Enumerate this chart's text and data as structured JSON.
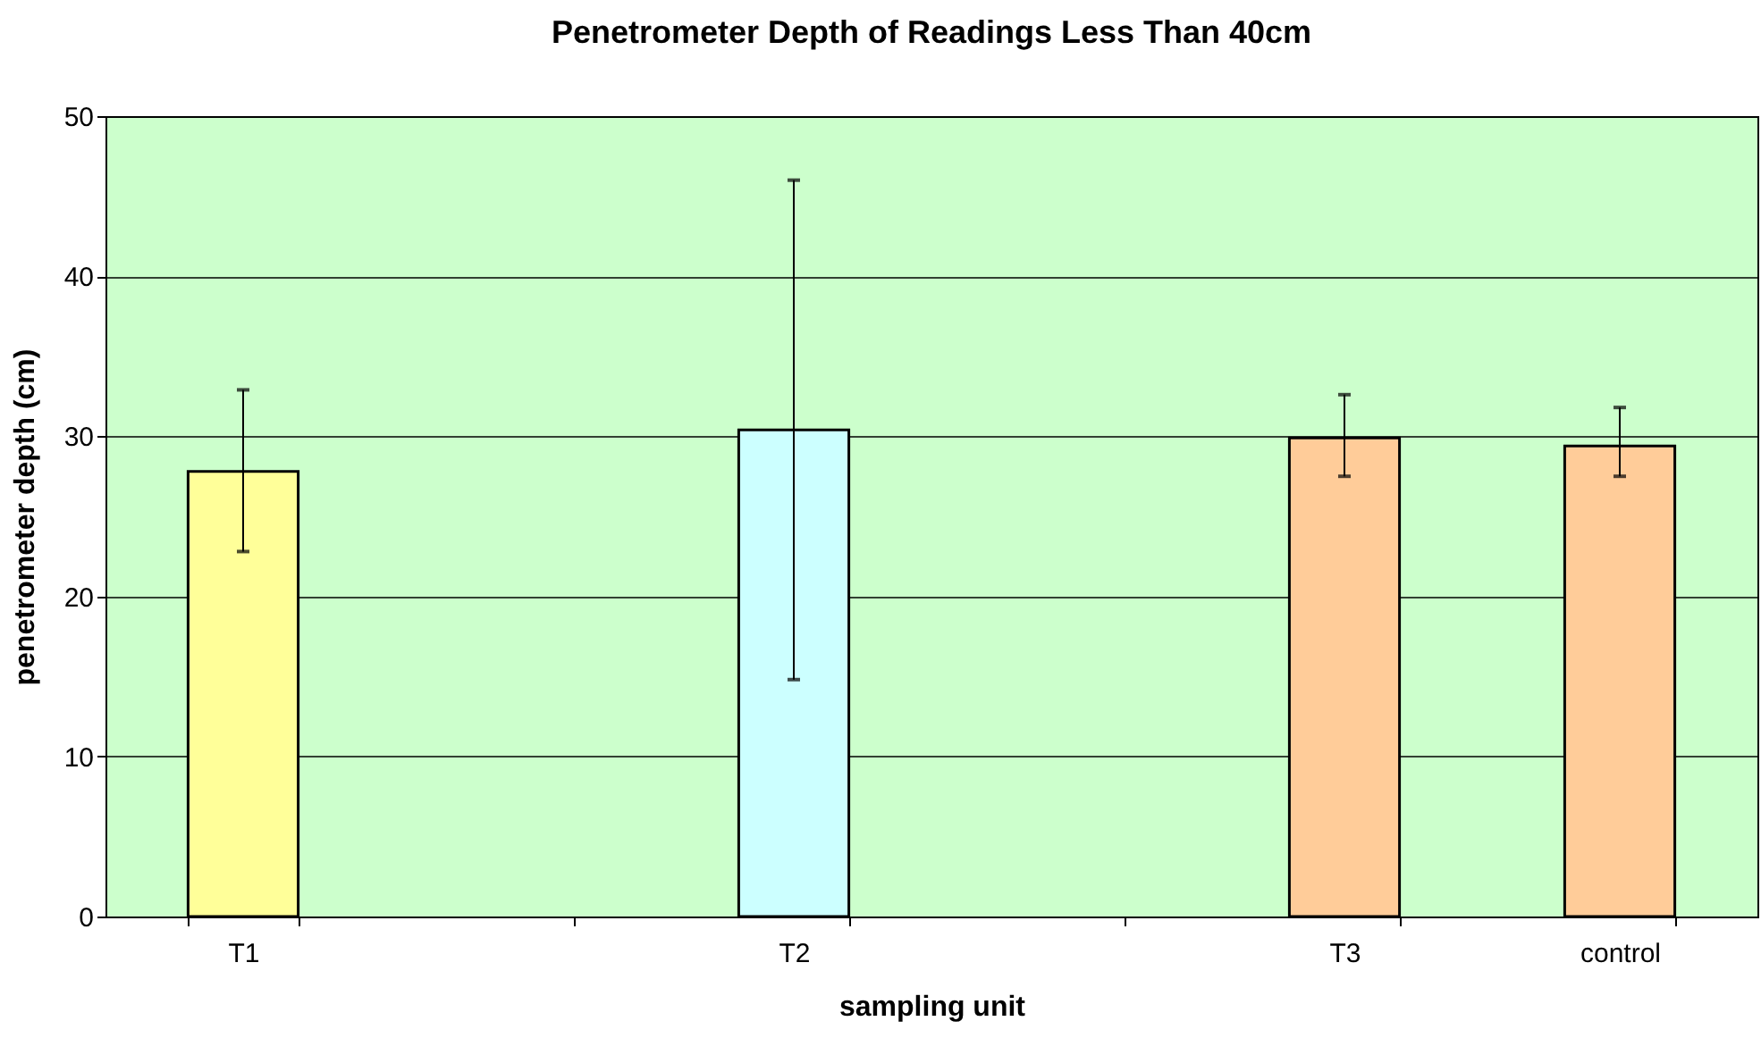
{
  "chart_data": {
    "type": "bar",
    "title": "Penetrometer Depth of Readings Less Than 40cm",
    "xlabel": "sampling unit",
    "ylabel": "penetrometer depth (cm)",
    "categories": [
      "T1",
      null,
      "T2",
      null,
      "T3",
      "control"
    ],
    "values": [
      27.8,
      null,
      30.4,
      null,
      29.9,
      29.4
    ],
    "colors": [
      "#ffff99",
      "#ffffff",
      "#ccffff",
      "#ffffff",
      "#ffcc99",
      "#ffcc99"
    ],
    "errors": [
      [
        22.8,
        32.9
      ],
      null,
      [
        14.8,
        46.0
      ],
      null,
      [
        27.5,
        32.6
      ],
      [
        27.5,
        31.8
      ]
    ],
    "ylim": [
      0,
      50
    ],
    "yticks": [
      0,
      10,
      20,
      30,
      40,
      50
    ],
    "grid": "y"
  }
}
